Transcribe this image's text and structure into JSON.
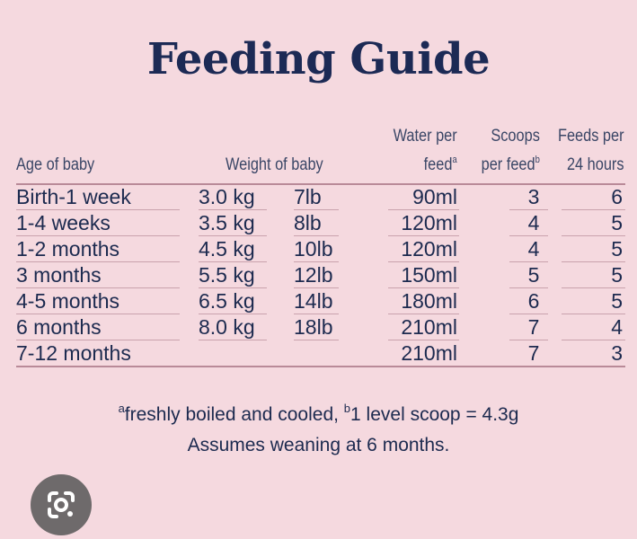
{
  "title": "Feeding Guide",
  "headers": {
    "age": "Age of baby",
    "weight": "Weight of baby",
    "water_line1": "Water per",
    "water_line2": "feed",
    "water_sup": "a",
    "scoops_line1": "Scoops",
    "scoops_line2": "per feed",
    "scoops_sup": "b",
    "feeds_line1": "Feeds per",
    "feeds_line2": "24 hours"
  },
  "rows": [
    {
      "age": "Birth-1 week",
      "kg": "3.0 kg",
      "lb": "7lb",
      "water": "90ml",
      "scoops": "3",
      "feeds": "6"
    },
    {
      "age": "1-4 weeks",
      "kg": "3.5 kg",
      "lb": "8lb",
      "water": "120ml",
      "scoops": "4",
      "feeds": "5"
    },
    {
      "age": "1-2 months",
      "kg": "4.5 kg",
      "lb": "10lb",
      "water": "120ml",
      "scoops": "4",
      "feeds": "5"
    },
    {
      "age": "3 months",
      "kg": "5.5 kg",
      "lb": "12lb",
      "water": "150ml",
      "scoops": "5",
      "feeds": "5"
    },
    {
      "age": "4-5 months",
      "kg": "6.5 kg",
      "lb": "14lb",
      "water": "180ml",
      "scoops": "6",
      "feeds": "5"
    },
    {
      "age": "6 months",
      "kg": "8.0 kg",
      "lb": "18lb",
      "water": "210ml",
      "scoops": "7",
      "feeds": "4"
    },
    {
      "age": "7-12 months",
      "kg": "",
      "lb": "",
      "water": "210ml",
      "scoops": "7",
      "feeds": "3"
    }
  ],
  "footnote": {
    "sup_a": "a",
    "text_a": "freshly boiled and cooled, ",
    "sup_b": "b",
    "text_b": "1 level scoop = 4.3g",
    "line2": "Assumes weaning at 6 months."
  },
  "icons": {
    "lens": "google-lens-icon"
  },
  "colors": {
    "background": "#f5d9df",
    "text": "#1c2a4f",
    "rule": "#b98a98"
  }
}
